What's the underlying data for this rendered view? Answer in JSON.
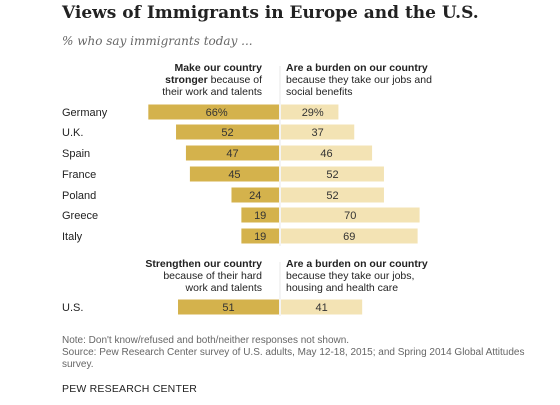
{
  "title": "Views of Immigrants in Europe and the U.S.",
  "subtitle": "% who say immigrants today ...",
  "headers": {
    "europe_left_bold": "Make our country stronger",
    "europe_left_rest": " because of their work and talents",
    "europe_right_bold": "Are a burden on our country",
    "europe_right_rest": " because they take our jobs and social benefits",
    "us_left_bold": "Strengthen our country",
    "us_left_rest": " because of their hard work and talents",
    "us_right_bold": "Are a burden on our country",
    "us_right_rest": " because they take our jobs, housing and health care"
  },
  "colors": {
    "positive": "#d4b24c",
    "negative": "#f3e3b4",
    "label": "#333333"
  },
  "chart_data": {
    "type": "bar",
    "subtype": "diverging-horizontal",
    "categories": [
      "Germany",
      "U.K.",
      "Spain",
      "France",
      "Poland",
      "Greece",
      "Italy",
      "U.S."
    ],
    "series": [
      {
        "name": "Make our country stronger",
        "values": [
          66,
          52,
          47,
          45,
          24,
          19,
          19,
          51
        ],
        "labels": [
          "66%",
          "52",
          "47",
          "45",
          "24",
          "19",
          "19",
          "51"
        ]
      },
      {
        "name": "Are a burden on our country",
        "values": [
          29,
          37,
          46,
          52,
          52,
          70,
          69,
          41
        ],
        "labels": [
          "29%",
          "37",
          "46",
          "52",
          "52",
          "70",
          "69",
          "41"
        ]
      }
    ]
  },
  "note": "Note: Don't know/refused and both/neither responses not shown.",
  "source": "Source: Pew Research Center survey of U.S. adults, May 12-18, 2015; and Spring 2014 Global Attitudes survey.",
  "brand": "PEW RESEARCH CENTER"
}
